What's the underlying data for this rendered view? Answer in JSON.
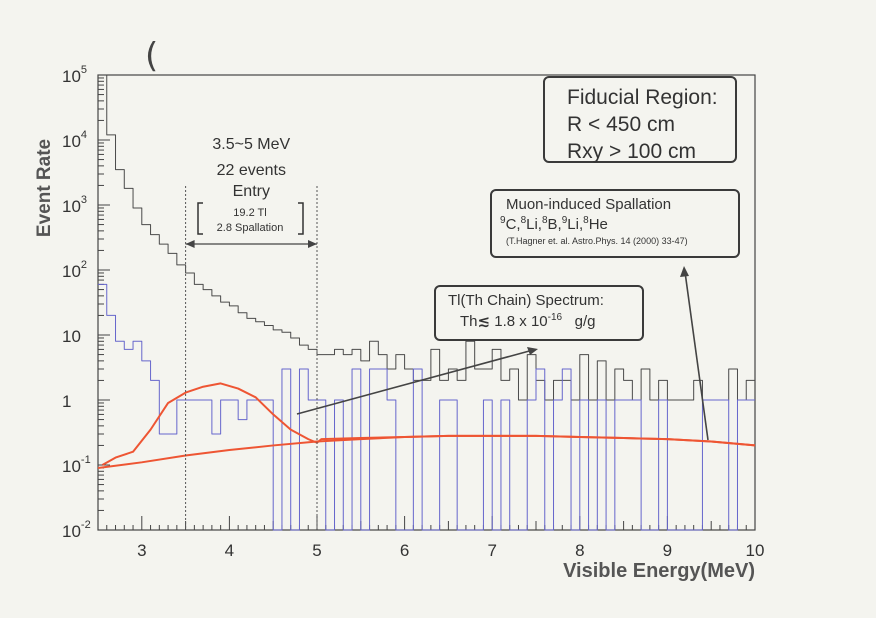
{
  "chart_data": {
    "type": "line",
    "x_edges": [
      2.5,
      2.6,
      2.7,
      2.8,
      2.9,
      3.0,
      3.1,
      3.2,
      3.3,
      3.4,
      3.5,
      3.6,
      3.7,
      3.8,
      3.9,
      4.0,
      4.1,
      4.2,
      4.3,
      4.4,
      4.5,
      4.6,
      4.7,
      4.8,
      4.9,
      5.0,
      5.1,
      5.2,
      5.3,
      5.4,
      5.5,
      5.6,
      5.7,
      5.8,
      5.9,
      6.0,
      6.1,
      6.2,
      6.3,
      6.4,
      6.5,
      6.6,
      6.7,
      6.8,
      6.9,
      7.0,
      7.1,
      7.2,
      7.3,
      7.4,
      7.5,
      7.6,
      7.7,
      7.8,
      7.9,
      8.0,
      8.1,
      8.2,
      8.3,
      8.4,
      8.5,
      8.6,
      8.7,
      8.8,
      8.9,
      9.0,
      9.1,
      9.2,
      9.3,
      9.4,
      9.5,
      9.6,
      9.7,
      9.8,
      9.9,
      10.0
    ],
    "series": [
      {
        "style": "step",
        "color": "#4a4a4a",
        "values": [
          100000,
          12000,
          3500,
          1800,
          900,
          500,
          350,
          250,
          180,
          120,
          90,
          60,
          50,
          40,
          32,
          28,
          22,
          18,
          16,
          14,
          12,
          11,
          9,
          7,
          6,
          5,
          5,
          6,
          5,
          6,
          4,
          8,
          5,
          3,
          5,
          3,
          2,
          2,
          6,
          2,
          3,
          2,
          8,
          3,
          3,
          6,
          2,
          3,
          1,
          5,
          2,
          1,
          2,
          2,
          1,
          5,
          1,
          4,
          1,
          3,
          2,
          1,
          3,
          1,
          2,
          1,
          1,
          1,
          2,
          1,
          1,
          1,
          3,
          1,
          2
        ]
      },
      {
        "style": "step",
        "color": "#6666cc",
        "values": [
          60,
          20,
          8,
          6,
          8,
          4,
          2,
          0.3,
          0.3,
          1,
          1,
          1,
          1,
          0.3,
          1,
          1,
          0.5,
          1,
          1,
          1,
          0.01,
          3,
          0.01,
          3,
          1,
          1,
          0.01,
          1,
          0.01,
          3,
          0.01,
          3,
          3,
          1,
          0.01,
          0.01,
          3,
          0.01,
          0.01,
          1,
          1,
          0.01,
          0.01,
          0.01,
          1,
          0.01,
          1,
          0.01,
          0.01,
          1,
          3,
          0.01,
          1,
          3,
          0.01,
          1,
          0.01,
          1,
          0.01,
          1,
          1,
          1,
          0.01,
          0.01,
          1,
          0.01,
          0.01,
          0.01,
          0.01,
          1,
          1,
          1,
          0.01,
          1,
          1
        ]
      },
      {
        "style": "curve",
        "color": "#ee5533",
        "x": [
          2.55,
          2.7,
          2.9,
          3.1,
          3.3,
          3.5,
          3.7,
          3.9,
          4.1,
          4.3,
          4.5,
          4.7,
          4.9,
          5.0,
          5.05,
          5.5,
          6.0,
          6.5,
          7.0,
          7.5,
          8.0,
          8.5,
          9.0,
          9.5,
          10.0
        ],
        "y": [
          0.1,
          0.13,
          0.16,
          0.35,
          0.9,
          1.3,
          1.6,
          1.8,
          1.5,
          1.1,
          0.6,
          0.35,
          0.25,
          0.22,
          0.25,
          0.26,
          0.27,
          0.28,
          0.28,
          0.28,
          0.27,
          0.26,
          0.25,
          0.23,
          0.2
        ]
      },
      {
        "style": "curve",
        "color": "#ee5533",
        "x": [
          2.5,
          3.0,
          3.5,
          4.0,
          4.5,
          5.0,
          5.5,
          6.0,
          6.5,
          7.0,
          7.5,
          8.0,
          8.5,
          9.0,
          9.5,
          10.0
        ],
        "y": [
          0.09,
          0.11,
          0.14,
          0.17,
          0.2,
          0.23,
          0.25,
          0.27,
          0.28,
          0.28,
          0.28,
          0.27,
          0.26,
          0.25,
          0.23,
          0.2
        ]
      }
    ],
    "xlim": [
      2.5,
      10
    ],
    "ylim": [
      0.01,
      100000
    ],
    "yscale": "log",
    "xlabel": "Visible Energy(MeV)",
    "ylabel": "Event Rate",
    "x_ticks": [
      "3",
      "4",
      "5",
      "6",
      "7",
      "8",
      "9",
      "10"
    ],
    "y_ticks": [
      {
        "base": "10",
        "exp": "5"
      },
      {
        "base": "10",
        "exp": "4"
      },
      {
        "base": "10",
        "exp": "3"
      },
      {
        "base": "10",
        "exp": "2"
      },
      {
        "base": "10",
        "exp": ""
      },
      {
        "base": "1",
        "exp": ""
      },
      {
        "base": "10",
        "exp": "-1"
      },
      {
        "base": "10",
        "exp": "-2"
      }
    ],
    "window": {
      "x1": 3.5,
      "x2": 5.0,
      "range_label": "3.5~5 MeV",
      "events": "22 events",
      "entry": "Entry",
      "tl": "19.2 Tl",
      "spall": "2.8 Spallation"
    },
    "annotations": {
      "fiducial": [
        "Fiducial Region:",
        "R < 450 cm",
        "Rxy > 100 cm"
      ],
      "spallation_title": "Muon-induced Spallation",
      "spallation_isotopes": [
        {
          "sup": "9",
          "el": "C,"
        },
        {
          "sup": "8",
          "el": "Li,"
        },
        {
          "sup": "8",
          "el": "B,"
        },
        {
          "sup": "9",
          "el": "Li,"
        },
        {
          "sup": "8",
          "el": "He"
        }
      ],
      "spallation_ref": "(T.Hagner et. al. Astro.Phys. 14 (2000) 33-47)",
      "tl_title": "Tl(Th Chain) Spectrum:",
      "tl_value": {
        "pre": "Th",
        "leq": "≲",
        "mant": " 1.8 x 10",
        "exp": "-16",
        "unit": "g/g"
      }
    },
    "pen_mark": "("
  }
}
